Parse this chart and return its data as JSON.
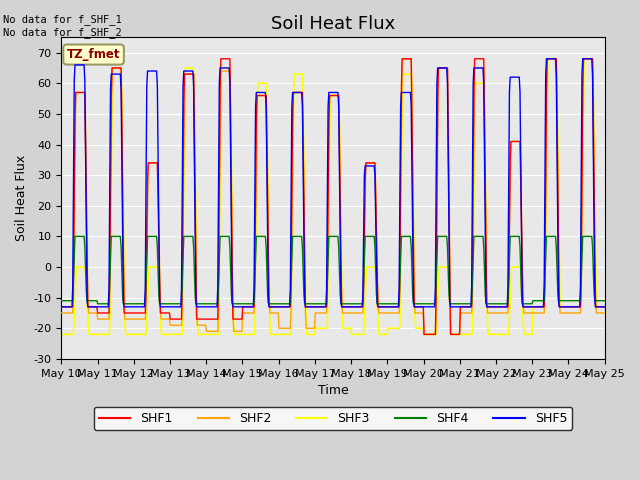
{
  "title": "Soil Heat Flux",
  "xlabel": "Time",
  "ylabel": "Soil Heat Flux",
  "ylim": [
    -30,
    75
  ],
  "ytick_values": [
    -30,
    -20,
    -10,
    0,
    10,
    20,
    30,
    40,
    50,
    60,
    70
  ],
  "xtick_labels": [
    "May 10",
    "May 11",
    "May 12",
    "May 13",
    "May 14",
    "May 15",
    "May 16",
    "May 17",
    "May 18",
    "May 19",
    "May 20",
    "May 21",
    "May 22",
    "May 23",
    "May 24",
    "May 25"
  ],
  "annotation_text": "No data for f_SHF_1\nNo data for f_SHF_2",
  "tz_label": "TZ_fmet",
  "legend_entries": [
    "SHF1",
    "SHF2",
    "SHF3",
    "SHF4",
    "SHF5"
  ],
  "line_colors": [
    "red",
    "orange",
    "yellow",
    "green",
    "blue"
  ],
  "background_color": "#d3d3d3",
  "plot_bg_color": "#e8e8e8",
  "title_fontsize": 13,
  "axis_label_fontsize": 9,
  "tick_fontsize": 8
}
